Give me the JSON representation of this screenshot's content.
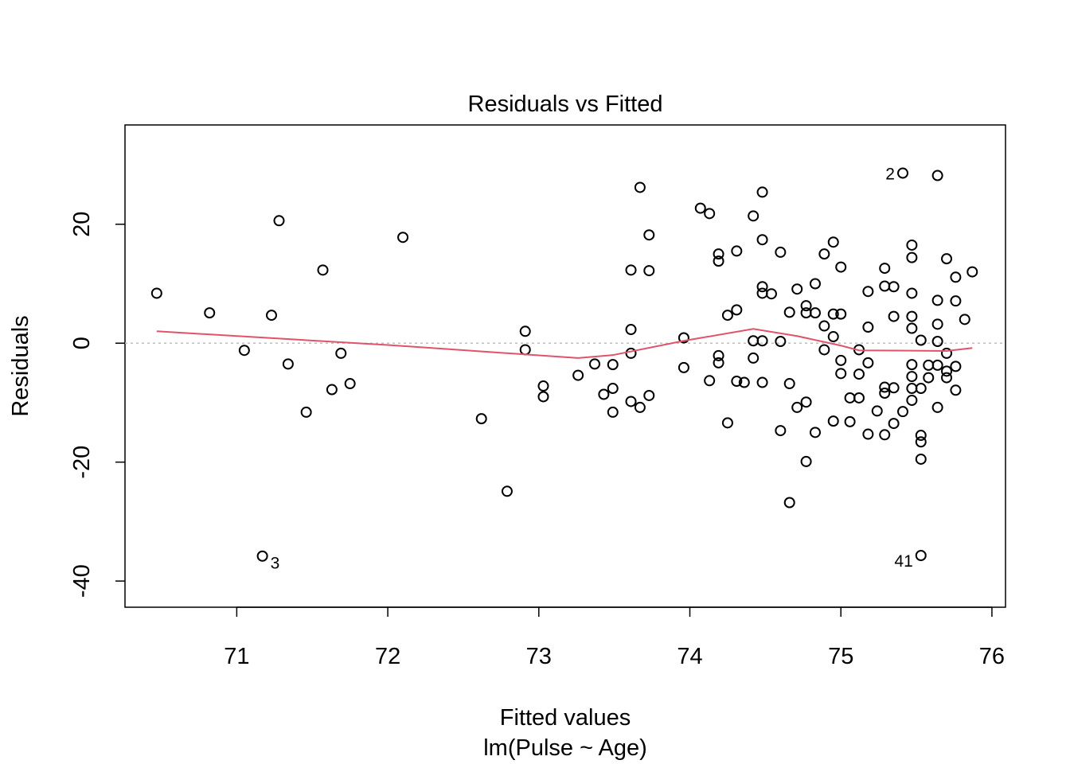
{
  "chart_data": {
    "type": "scatter",
    "title": "Residuals vs Fitted",
    "xlabel": "Fitted values",
    "sublabel": "lm(Pulse ~ Age)",
    "ylabel": "Residuals",
    "xlim": [
      70.26,
      76.09
    ],
    "ylim": [
      -44.4,
      36.7
    ],
    "x_ticks": [
      71,
      72,
      73,
      74,
      75,
      76
    ],
    "x_tick_labels": [
      "71",
      "72",
      "73",
      "74",
      "75",
      "76"
    ],
    "y_ticks": [
      -40,
      -20,
      0,
      20
    ],
    "y_tick_labels": [
      "-40",
      "-20",
      "0",
      "20"
    ],
    "grid": false,
    "reference_line": {
      "y": 0,
      "style": "dotted",
      "color": "#BEBEBE"
    },
    "smooth_color": "#DF536B",
    "point_color": "#000000",
    "points": [
      [
        70.47,
        8.4
      ],
      [
        70.82,
        5.1
      ],
      [
        71.05,
        -1.2
      ],
      [
        71.23,
        4.7
      ],
      [
        71.28,
        20.6
      ],
      [
        71.34,
        -3.5
      ],
      [
        71.17,
        -35.8
      ],
      [
        71.46,
        -11.6
      ],
      [
        71.57,
        12.3
      ],
      [
        71.63,
        -7.8
      ],
      [
        71.69,
        -1.7
      ],
      [
        71.75,
        -6.8
      ],
      [
        72.1,
        17.8
      ],
      [
        72.62,
        -12.7
      ],
      [
        72.79,
        -24.9
      ],
      [
        72.91,
        2.0
      ],
      [
        72.91,
        -1.1
      ],
      [
        73.03,
        -7.2
      ],
      [
        73.03,
        -9.0
      ],
      [
        73.26,
        -5.4
      ],
      [
        73.37,
        -3.5
      ],
      [
        73.43,
        -8.6
      ],
      [
        73.49,
        -7.6
      ],
      [
        73.49,
        -3.6
      ],
      [
        73.49,
        -11.6
      ],
      [
        73.61,
        12.3
      ],
      [
        73.61,
        2.3
      ],
      [
        73.61,
        -1.7
      ],
      [
        73.61,
        -9.8
      ],
      [
        73.67,
        26.2
      ],
      [
        73.67,
        -10.8
      ],
      [
        73.73,
        18.2
      ],
      [
        73.73,
        12.2
      ],
      [
        73.73,
        -8.8
      ],
      [
        73.96,
        0.9
      ],
      [
        73.96,
        -4.1
      ],
      [
        74.48,
        25.4
      ],
      [
        74.07,
        22.7
      ],
      [
        74.13,
        21.8
      ],
      [
        74.42,
        21.4
      ],
      [
        74.48,
        17.4
      ],
      [
        74.95,
        17.0
      ],
      [
        74.19,
        15.0
      ],
      [
        74.19,
        13.8
      ],
      [
        74.31,
        15.5
      ],
      [
        74.6,
        15.3
      ],
      [
        74.89,
        15.0
      ],
      [
        75.0,
        12.8
      ],
      [
        74.48,
        9.5
      ],
      [
        74.48,
        8.4
      ],
      [
        74.54,
        8.3
      ],
      [
        74.71,
        9.1
      ],
      [
        74.83,
        10.0
      ],
      [
        74.31,
        5.6
      ],
      [
        74.25,
        4.7
      ],
      [
        74.66,
        5.2
      ],
      [
        74.77,
        6.3
      ],
      [
        74.77,
        5.1
      ],
      [
        74.83,
        5.1
      ],
      [
        74.95,
        4.9
      ],
      [
        75.0,
        4.9
      ],
      [
        74.89,
        2.9
      ],
      [
        74.42,
        0.4
      ],
      [
        74.48,
        0.4
      ],
      [
        74.6,
        0.3
      ],
      [
        74.95,
        1.1
      ],
      [
        74.89,
        -1.1
      ],
      [
        74.19,
        -2.1
      ],
      [
        74.19,
        -3.3
      ],
      [
        74.42,
        -2.5
      ],
      [
        75.0,
        -2.9
      ],
      [
        75.0,
        -5.1
      ],
      [
        74.13,
        -6.3
      ],
      [
        74.31,
        -6.4
      ],
      [
        74.36,
        -6.6
      ],
      [
        74.48,
        -6.6
      ],
      [
        74.66,
        -6.8
      ],
      [
        74.77,
        -9.9
      ],
      [
        74.71,
        -10.8
      ],
      [
        74.25,
        -13.4
      ],
      [
        74.95,
        -13.1
      ],
      [
        74.6,
        -14.7
      ],
      [
        74.83,
        -15.0
      ],
      [
        74.77,
        -19.9
      ],
      [
        74.66,
        -26.8
      ],
      [
        75.41,
        28.6
      ],
      [
        75.64,
        28.2
      ],
      [
        75.47,
        16.5
      ],
      [
        75.47,
        14.4
      ],
      [
        75.7,
        14.2
      ],
      [
        75.29,
        12.6
      ],
      [
        75.76,
        11.1
      ],
      [
        75.87,
        12.0
      ],
      [
        75.29,
        9.6
      ],
      [
        75.35,
        9.5
      ],
      [
        75.18,
        8.7
      ],
      [
        75.47,
        8.4
      ],
      [
        75.64,
        7.2
      ],
      [
        75.76,
        7.1
      ],
      [
        75.35,
        4.5
      ],
      [
        75.47,
        4.5
      ],
      [
        75.47,
        2.5
      ],
      [
        75.82,
        4.0
      ],
      [
        75.18,
        2.7
      ],
      [
        75.64,
        3.2
      ],
      [
        75.53,
        0.5
      ],
      [
        75.64,
        0.3
      ],
      [
        75.12,
        -1.1
      ],
      [
        75.7,
        -1.7
      ],
      [
        75.18,
        -3.3
      ],
      [
        75.12,
        -5.2
      ],
      [
        75.47,
        -3.6
      ],
      [
        75.58,
        -3.7
      ],
      [
        75.64,
        -3.7
      ],
      [
        75.76,
        -3.9
      ],
      [
        75.7,
        -4.7
      ],
      [
        75.7,
        -5.8
      ],
      [
        75.47,
        -5.6
      ],
      [
        75.58,
        -5.8
      ],
      [
        75.29,
        -7.4
      ],
      [
        75.29,
        -8.4
      ],
      [
        75.35,
        -7.5
      ],
      [
        75.47,
        -7.6
      ],
      [
        75.53,
        -7.6
      ],
      [
        75.76,
        -7.9
      ],
      [
        75.06,
        -9.2
      ],
      [
        75.12,
        -9.2
      ],
      [
        75.47,
        -9.6
      ],
      [
        75.24,
        -11.4
      ],
      [
        75.41,
        -11.5
      ],
      [
        75.64,
        -10.8
      ],
      [
        75.06,
        -13.2
      ],
      [
        75.35,
        -13.5
      ],
      [
        75.18,
        -15.3
      ],
      [
        75.29,
        -15.4
      ],
      [
        75.53,
        -15.5
      ],
      [
        75.53,
        -16.6
      ],
      [
        75.53,
        -19.5
      ],
      [
        75.53,
        -35.7
      ]
    ],
    "smooth": [
      [
        70.47,
        2.0
      ],
      [
        72.0,
        -0.3
      ],
      [
        73.26,
        -2.5
      ],
      [
        73.49,
        -2.0
      ],
      [
        73.96,
        0.4
      ],
      [
        74.42,
        2.4
      ],
      [
        74.71,
        1.2
      ],
      [
        75.0,
        -0.4
      ],
      [
        75.12,
        -1.2
      ],
      [
        75.7,
        -1.3
      ],
      [
        75.87,
        -0.8
      ]
    ],
    "point_labels": [
      {
        "text": "2",
        "x": 75.41,
        "y": 28.6,
        "side": "left"
      },
      {
        "text": "3",
        "x": 71.17,
        "y": -35.8,
        "side": "right"
      },
      {
        "text": "41",
        "x": 75.53,
        "y": -35.7,
        "side": "left"
      }
    ]
  }
}
